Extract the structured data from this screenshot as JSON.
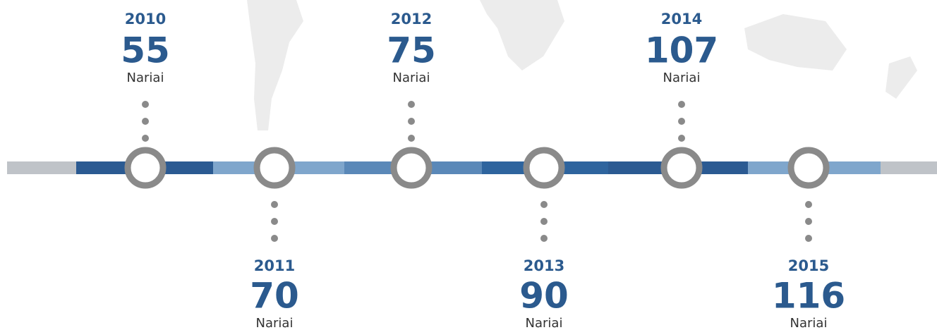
{
  "timeline": {
    "items": [
      {
        "year": "2010",
        "value": 55,
        "unit": "Nariai"
      },
      {
        "year": "2011",
        "value": 70,
        "unit": "Nariai"
      },
      {
        "year": "2012",
        "value": 75,
        "unit": "Nariai"
      },
      {
        "year": "2013",
        "value": 90,
        "unit": "Nariai"
      },
      {
        "year": "2014",
        "value": 107,
        "unit": "Nariai"
      },
      {
        "year": "2015",
        "value": 116,
        "unit": "Nariai"
      }
    ]
  }
}
